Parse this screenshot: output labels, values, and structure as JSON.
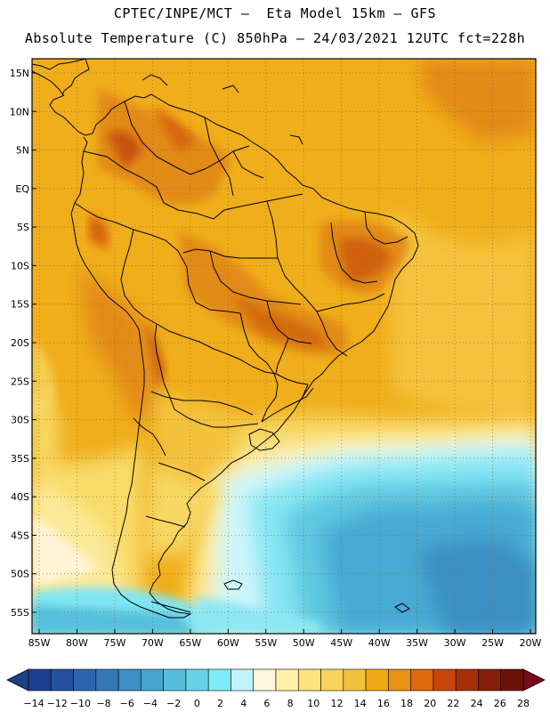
{
  "header": {
    "line1": "CPTEC/INPE/MCT –  Eta Model 15km – GFS",
    "line2": "Absolute Temperature (C) 850hPa – 24/03/2021 12UTC fct=228h"
  },
  "axes": {
    "lat_labels": [
      "15N",
      "10N",
      "5N",
      "EQ",
      "5S",
      "10S",
      "15S",
      "20S",
      "25S",
      "30S",
      "35S",
      "40S",
      "45S",
      "50S",
      "55S"
    ],
    "lon_labels": [
      "85W",
      "80W",
      "75W",
      "70W",
      "65W",
      "60W",
      "55W",
      "50W",
      "45W",
      "40W",
      "35W",
      "30W",
      "25W",
      "20W"
    ]
  },
  "colorbar": {
    "labels": [
      "-14",
      "-12",
      "-10",
      "-8",
      "-6",
      "-4",
      "-2",
      "0",
      "2",
      "4",
      "6",
      "8",
      "10",
      "12",
      "14",
      "16",
      "18",
      "20",
      "22",
      "24",
      "26",
      "28"
    ],
    "colors": [
      "#1c3f8f",
      "#24529f",
      "#2d66ae",
      "#3478b8",
      "#3d8ec3",
      "#47a6d0",
      "#57bddd",
      "#68d3e8",
      "#7eecf5",
      "#bff4fb",
      "#fff6dc",
      "#fff0a8",
      "#fde47a",
      "#f8d35a",
      "#f3c23c",
      "#eeaa16",
      "#e79212",
      "#dd6a0e",
      "#c8450b",
      "#a92e0a",
      "#871f09",
      "#6b1208"
    ],
    "over_color": "#7a0a18",
    "under_color": "#1e3f86"
  },
  "colors": {
    "land_border": "#000000",
    "grid": "#8a6a3a"
  }
}
